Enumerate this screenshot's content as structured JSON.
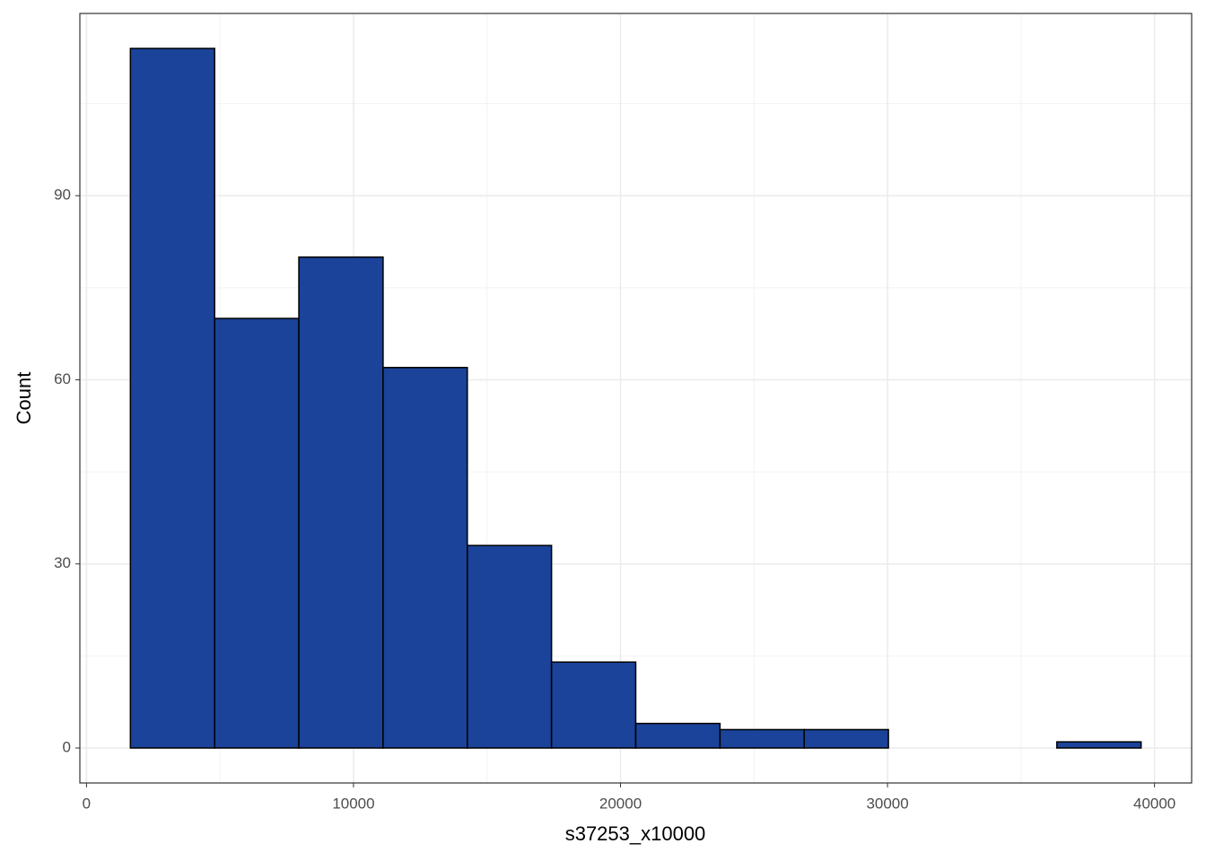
{
  "chart_data": {
    "type": "histogram",
    "x_label": "s37253_x10000",
    "y_label": "Count",
    "bins": [
      1644,
      4799,
      7953,
      11107,
      14262,
      17416,
      20570,
      23725,
      26879,
      30034,
      33188,
      36342,
      39497
    ],
    "counts": [
      114,
      70,
      80,
      62,
      33,
      14,
      4,
      3,
      3,
      0,
      0,
      1
    ],
    "color": "#1a4399",
    "edge_color": "#000000",
    "xlim": [
      -249,
      41390
    ],
    "xticks": [
      0,
      10000,
      20000,
      30000,
      40000
    ],
    "x_minor_ticks": [
      5000,
      15000,
      25000,
      35000
    ],
    "ylim": [
      -5.7,
      119.7
    ],
    "yticks": [
      0,
      30,
      60,
      90
    ],
    "y_minor_ticks": [
      15,
      45,
      75,
      105
    ],
    "grid": true
  }
}
